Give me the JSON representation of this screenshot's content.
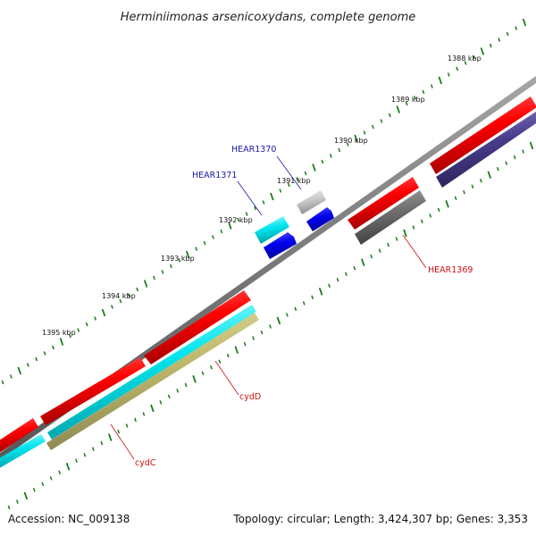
{
  "title": "Herminiimonas arsenicoxydans, complete genome",
  "ticks": [
    {
      "label": "1388 kbp"
    },
    {
      "label": "1389 kbp"
    },
    {
      "label": "1390 kbp"
    },
    {
      "label": "1391 kbp"
    },
    {
      "label": "1392 kbp"
    },
    {
      "label": "1393 kbp"
    },
    {
      "label": "1394 kbp"
    },
    {
      "label": "1395 kbp"
    }
  ],
  "gene_labels": {
    "hear1370": "HEAR1370",
    "hear1371": "HEAR1371",
    "hear1369": "HEAR1369",
    "cydd": "cydD",
    "cydc": "cydC"
  },
  "colors": {
    "backbone": "#808080",
    "forward_cds": "#ff0000",
    "cyan_track": "#00e5ee",
    "blue_track": "#0000ee",
    "olive_track": "#bdb76b",
    "gray_track": "#6e6e6e",
    "navy_track": "#483d8b",
    "light_gray": "#c8c8c8",
    "tick": "#1b7a1b",
    "label_blue": "#1a1aa6",
    "label_red": "#cc1111"
  },
  "footer": {
    "accession": "Accession: NC_009138",
    "topology": "Topology: circular; Length: 3,424,307 bp; Genes: 3,353"
  }
}
